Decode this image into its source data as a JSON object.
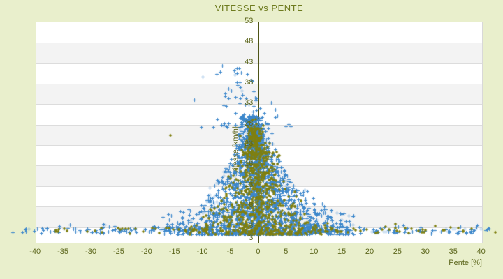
{
  "page": {
    "background": "#e9efcc"
  },
  "colors": {
    "title_text": "#6e7b1f",
    "tick_text": "#5c661c",
    "axis_line": "#4e5417",
    "grid_line": "#dcdcdc",
    "band_gray": "#f3f3f3",
    "band_white": "#ffffff",
    "plot_border": "#d8d8d8",
    "series_blue": "#3c87cb",
    "series_olive": "#7f7f10"
  },
  "chart_data": {
    "type": "scatter",
    "title": "VITESSE vs PENTE",
    "xlabel": "Pente [%]",
    "ylabel": "Vitesse [km/h]",
    "x_ticks": [
      -40,
      -35,
      -30,
      -25,
      -20,
      -15,
      -10,
      -5,
      0,
      5,
      10,
      15,
      20,
      25,
      30,
      35,
      40
    ],
    "y_ticks": [
      53,
      48,
      43,
      38,
      33,
      28,
      23,
      18,
      13,
      8,
      3
    ],
    "y_axis_min_label": "3",
    "xlim": [
      -39.9,
      40.3
    ],
    "ylim": [
      -1,
      53
    ],
    "grid": "horizontal-bands-alternating",
    "legend": "none",
    "y_axis_position": "x=0",
    "series": [
      {
        "name": "vitesse-vs-pente-bleu",
        "marker": "plus",
        "color": "#3c87cb",
        "seed": 42,
        "description": "dense cloud peaked at pente 0, speeds 1-42 km/h, hyperbolic streaks and low-speed tails to +/-42%",
        "generator": {
          "core": {
            "n": 2000,
            "v_min": 1,
            "v_span": 29,
            "v_exp": 1.8,
            "w_base": 2.0,
            "w_amp": 16,
            "w_exp": 1.6,
            "cx0": 0.4,
            "cx_slope": -0.055
          },
          "high": {
            "n": 70,
            "v_min": 27,
            "v_span": 15,
            "v_exp": 1.7,
            "w_base": 1.0,
            "w_amp": 9,
            "cx0": -1.5,
            "cx_slope": -0.16
          },
          "column": {
            "n": 320,
            "half_width": 0.25,
            "v_min": 1,
            "v_span": 27,
            "v_exp": 1.6
          },
          "tails": {
            "n_per_side": 130,
            "x_base": 8,
            "x_amp": 34,
            "x_exp": 1.6,
            "v_min": 1.2
          },
          "arcs": {
            "k_values": [
              20,
              30,
              45,
              62,
              85
            ],
            "points_per_arc": 22,
            "v_cap": 27
          }
        },
        "outlier_points": [
          [
            -44.0,
            1.5
          ],
          [
            -42.3,
            1.6
          ],
          [
            37.3,
            1.6
          ],
          [
            32.8,
            1.7
          ],
          [
            -6.4,
            42.3
          ],
          [
            -6.8,
            40.8
          ],
          [
            -7.4,
            40.2
          ],
          [
            -9.9,
            39.5
          ],
          [
            -11.5,
            34.0
          ],
          [
            2.3,
            33.2
          ],
          [
            -8.1,
            27.2
          ],
          [
            3.1,
            29.6
          ]
        ]
      },
      {
        "name": "vitesse-vs-pente-olive",
        "marker": "diamond",
        "color": "#7f7f10",
        "seed": 7,
        "description": "sparser olive cloud, mostly |pente|<18 and speeds below 30 km/h",
        "generator": {
          "core": {
            "n": 780,
            "v_min": 1,
            "v_span": 26,
            "v_exp": 1.7,
            "w_base": 1.5,
            "w_amp": 13,
            "w_exp": 1.5,
            "cx0": 0.8,
            "cx_slope": -0.05
          },
          "high": {
            "n": 45,
            "v_min": 20,
            "v_span": 10,
            "v_exp": 2.0,
            "w_base": 1.0,
            "w_amp": 4,
            "cx0": 0.0,
            "cx_slope": -0.1
          },
          "tails": {
            "n_per_side": 45,
            "x_base": 9,
            "x_amp": 30,
            "x_exp": 1.7,
            "v_min": 1.2
          }
        },
        "outlier_points": [
          [
            42.6,
            1.5
          ],
          [
            25.4,
            1.8
          ],
          [
            -28.0,
            1.6
          ],
          [
            -15.7,
            25.3
          ]
        ]
      }
    ]
  }
}
